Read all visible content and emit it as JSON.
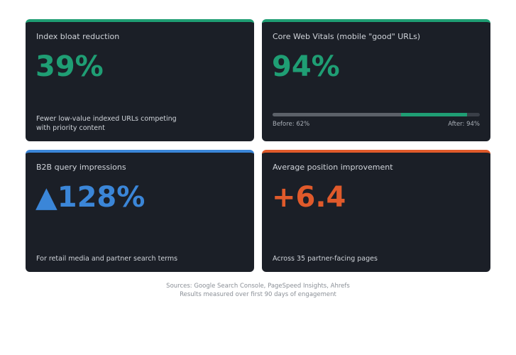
{
  "cards": [
    {
      "title": "Index bloat reduction",
      "value": "39%",
      "description": [
        "Fewer low-value indexed URLs competing",
        "with priority content"
      ],
      "accent": "#1f9e74"
    },
    {
      "title": "Core Web Vitals (mobile \"good\" URLs)",
      "value": "94%",
      "accent": "#1f9e74",
      "progress": {
        "before": 62,
        "after": 94,
        "before_label": "Before: 62%",
        "after_label": "After: 94%"
      }
    },
    {
      "title": "B2B query impressions",
      "value": "▲128%",
      "description": [
        "For retail media and partner search terms"
      ],
      "accent": "#3b86d8"
    },
    {
      "title": "Average position improvement",
      "value": "+6.4",
      "description": [
        "Across 35 partner-facing pages"
      ],
      "accent": "#e05a2b"
    }
  ],
  "footer": [
    "Sources: Google Search Console, PageSpeed Insights, Ahrefs",
    "Results measured over first 90 days of engagement"
  ]
}
